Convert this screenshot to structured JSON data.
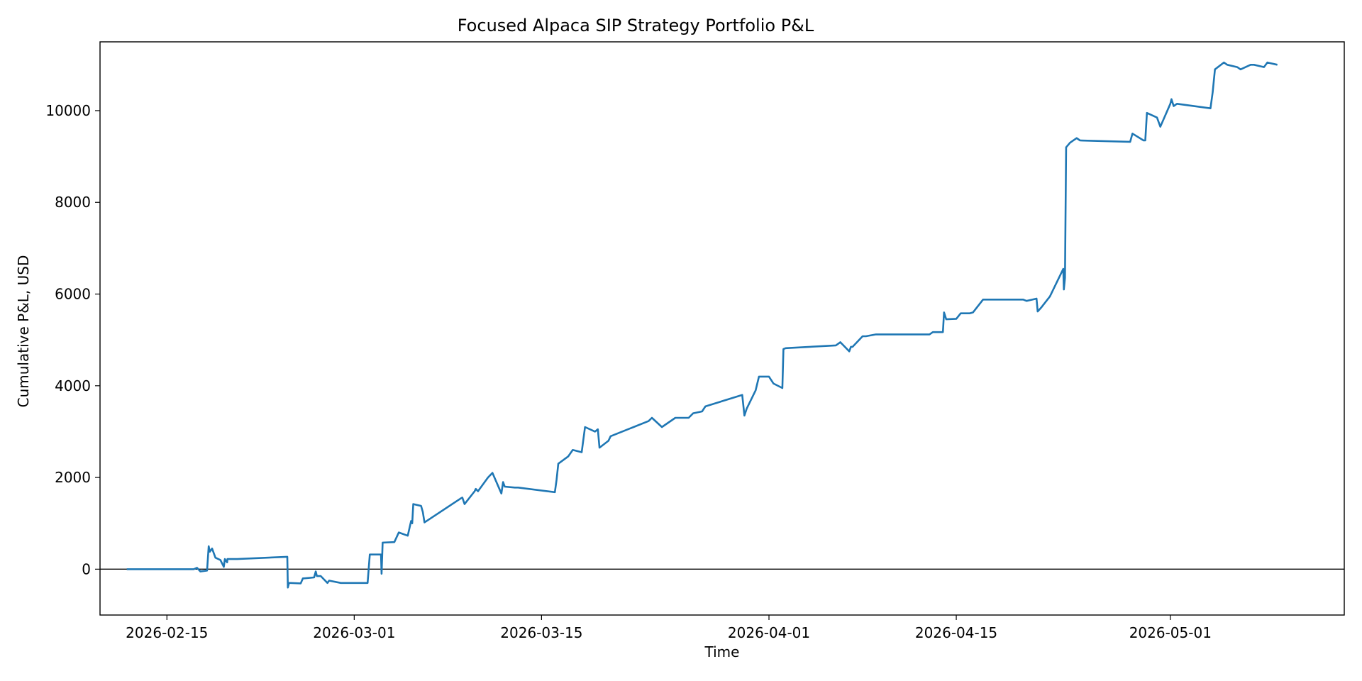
{
  "chart_data": {
    "type": "line",
    "title": "Focused Alpaca SIP Strategy Portfolio P&L",
    "xlabel": "Time",
    "ylabel": "Cumulative P&L, USD",
    "xlim": [
      "2026-02-10",
      "2026-05-14"
    ],
    "ylim": [
      -1000,
      11500
    ],
    "x_ticks": [
      "2026-02-15",
      "2026-03-01",
      "2026-03-15",
      "2026-04-01",
      "2026-04-15",
      "2026-05-01"
    ],
    "y_ticks": [
      0,
      2000,
      4000,
      6000,
      8000,
      10000
    ],
    "reference_lines": [
      {
        "axis": "y",
        "value": 0,
        "color": "#000000"
      }
    ],
    "grid": false,
    "legend": "none",
    "colors": {
      "series": "#1f77b4",
      "zero_line": "#000000",
      "axes": "#000000"
    },
    "series": [
      {
        "x": [
          "2026-02-12",
          "2026-02-17",
          "2026-02-17T06:00",
          "2026-02-17T12:00",
          "2026-02-18",
          "2026-02-18T03:00",
          "2026-02-18T05:00",
          "2026-02-18T09:00",
          "2026-02-18T15:00",
          "2026-02-19",
          "2026-02-19T06:00",
          "2026-02-19T08:00",
          "2026-02-19T12:00",
          "2026-02-19T12:30",
          "2026-02-20",
          "2026-02-20T04:00",
          "2026-02-20T06:00",
          "2026-02-24",
          "2026-02-24T01:00",
          "2026-02-24T03:00",
          "2026-02-24T06:00",
          "2026-02-25",
          "2026-02-25T04:00",
          "2026-02-25T06:00",
          "2026-02-26",
          "2026-02-26T03:00",
          "2026-02-26T05:00",
          "2026-02-26T12:00",
          "2026-02-27",
          "2026-02-27T03:00",
          "2026-02-28",
          "2026-02-28T06:00",
          "2026-03-02",
          "2026-03-02T04:00",
          "2026-03-03",
          "2026-03-03T01:00",
          "2026-03-03T03:00",
          "2026-03-04",
          "2026-03-04T08:00",
          "2026-03-05",
          "2026-03-05T06:00",
          "2026-03-05T08:00",
          "2026-03-05T10:00",
          "2026-03-06",
          "2026-03-06T03:00",
          "2026-03-06T06:00",
          "2026-03-09",
          "2026-03-09T02:00",
          "2026-03-09T06:00",
          "2026-03-10",
          "2026-03-10T02:00",
          "2026-03-10T06:00",
          "2026-03-11",
          "2026-03-11T04:00",
          "2026-03-11T08:00",
          "2026-03-12",
          "2026-03-12T03:00",
          "2026-03-12T06:00",
          "2026-03-13",
          "2026-03-13T06:00",
          "2026-03-16",
          "2026-03-16T03:00",
          "2026-03-16T06:00",
          "2026-03-17",
          "2026-03-17T08:00",
          "2026-03-18",
          "2026-03-18T06:00",
          "2026-03-19",
          "2026-03-19T05:00",
          "2026-03-19T08:00",
          "2026-03-20",
          "2026-03-20T04:00",
          "2026-03-23",
          "2026-03-23T06:00",
          "2026-03-24",
          "2026-03-25",
          "2026-03-26",
          "2026-03-26T08:00",
          "2026-03-27",
          "2026-03-27T06:00",
          "2026-03-30",
          "2026-03-30T04:00",
          "2026-03-30T08:00",
          "2026-03-31",
          "2026-03-31T06:00",
          "2026-04-01",
          "2026-04-01T08:00",
          "2026-04-02",
          "2026-04-02T02:00",
          "2026-04-02T06:00",
          "2026-04-06",
          "2026-04-06T08:00",
          "2026-04-07",
          "2026-04-07T03:00",
          "2026-04-07T06:00",
          "2026-04-08",
          "2026-04-08T06:00",
          "2026-04-09",
          "2026-04-13",
          "2026-04-13T06:00",
          "2026-04-14",
          "2026-04-14T02:00",
          "2026-04-14T06:00",
          "2026-04-15",
          "2026-04-15T08:00",
          "2026-04-16",
          "2026-04-16T06:00",
          "2026-04-17",
          "2026-04-17T06:00",
          "2026-04-20",
          "2026-04-20T06:00",
          "2026-04-21",
          "2026-04-21T02:00",
          "2026-04-21T08:00",
          "2026-04-22",
          "2026-04-22T06:00",
          "2026-04-23",
          "2026-04-23T01:00",
          "2026-04-23T03:00",
          "2026-04-23T05:00",
          "2026-04-23T12:00",
          "2026-04-24",
          "2026-04-24T06:00",
          "2026-04-28",
          "2026-04-28T04:00",
          "2026-04-29",
          "2026-04-29T03:00",
          "2026-04-29T06:00",
          "2026-04-30",
          "2026-04-30T06:00",
          "2026-05-01",
          "2026-05-01T02:00",
          "2026-05-01T06:00",
          "2026-05-01T12:00",
          "2026-05-04",
          "2026-05-04T04:00",
          "2026-05-04T08:00",
          "2026-05-05",
          "2026-05-05T06:00",
          "2026-05-06",
          "2026-05-06T06:00",
          "2026-05-07",
          "2026-05-07T06:00",
          "2026-05-08",
          "2026-05-08T06:00",
          "2026-05-09"
        ],
        "y": [
          0,
          0,
          30,
          -50,
          -30,
          500,
          380,
          450,
          250,
          200,
          50,
          220,
          150,
          220,
          220,
          220,
          220,
          270,
          -400,
          -300,
          -300,
          -310,
          -200,
          -200,
          -180,
          -50,
          -150,
          -150,
          -300,
          -250,
          -300,
          -300,
          -300,
          320,
          320,
          -100,
          580,
          590,
          800,
          730,
          1050,
          1000,
          1420,
          1380,
          1250,
          1020,
          1550,
          1560,
          1420,
          1700,
          1750,
          1700,
          2000,
          2050,
          2100,
          1650,
          1900,
          1800,
          1780,
          1780,
          1680,
          1950,
          2300,
          2460,
          2600,
          2550,
          3100,
          3000,
          3050,
          2650,
          2800,
          2900,
          3230,
          3300,
          3100,
          3300,
          3300,
          3400,
          3440,
          3550,
          3800,
          3350,
          3500,
          3900,
          4200,
          4200,
          4050,
          3950,
          4800,
          4820,
          4880,
          4950,
          4750,
          4850,
          4850,
          5080,
          5080,
          5120,
          5120,
          5170,
          5170,
          5600,
          5450,
          5460,
          5580,
          5580,
          5600,
          5880,
          5880,
          5880,
          5850,
          5900,
          5620,
          5700,
          5950,
          6100,
          6550,
          6100,
          6350,
          9200,
          9300,
          9400,
          9350,
          9320,
          9500,
          9350,
          9350,
          9950,
          9850,
          9650,
          10150,
          10250,
          10100,
          10150,
          10050,
          10400,
          10900,
          11050,
          11000,
          10950,
          10900,
          11000,
          11000,
          10950,
          11050,
          11000
        ]
      }
    ]
  }
}
